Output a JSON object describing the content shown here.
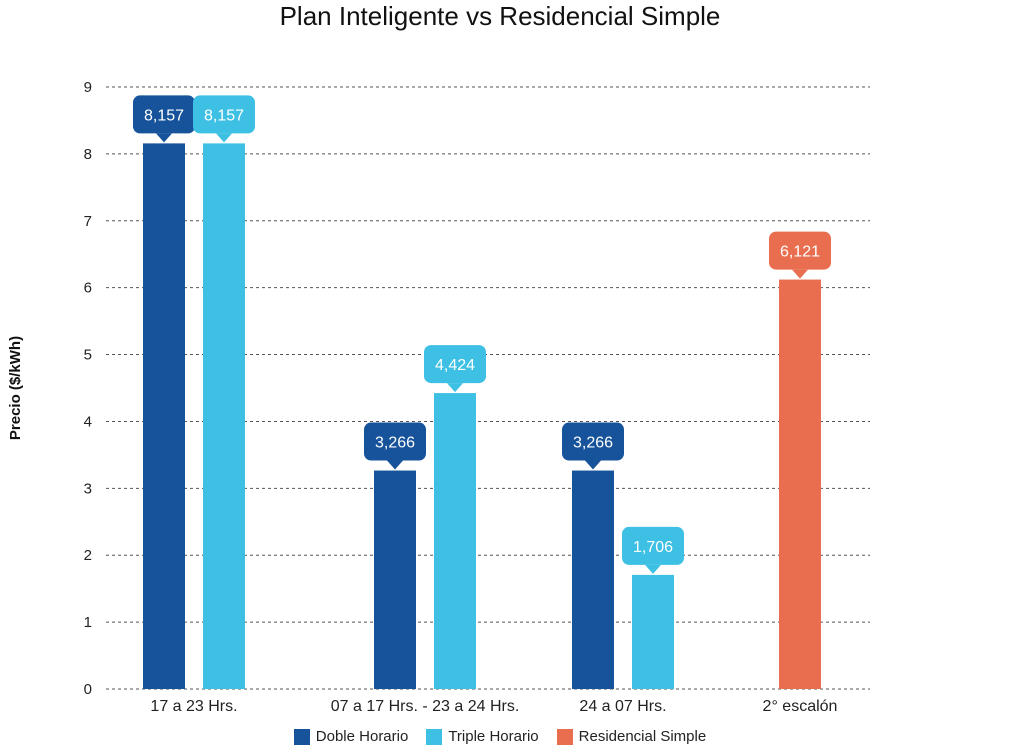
{
  "chart_data": {
    "type": "bar",
    "title": "Plan Inteligente vs Residencial Simple",
    "ylabel": "Precio ($/kWh)",
    "xlabel": "",
    "ylim": [
      0,
      9
    ],
    "yticks": [
      0,
      1,
      2,
      3,
      4,
      5,
      6,
      7,
      8,
      9
    ],
    "grid": true,
    "legend_position": "bottom",
    "categories": [
      "17 a 23 Hrs.",
      "07 a 17 Hrs. - 23 a 24 Hrs.",
      "24 a 07 Hrs.",
      "2° escalón"
    ],
    "series": [
      {
        "name": "Doble Horario",
        "color": "#16539a",
        "values": [
          8.157,
          3.266,
          3.266,
          null
        ],
        "labels": [
          "8,157",
          "3,266",
          "3,266",
          null
        ]
      },
      {
        "name": "Triple Horario",
        "color": "#3ec0e4",
        "values": [
          8.157,
          4.424,
          1.706,
          null
        ],
        "labels": [
          "8,157",
          "4,424",
          "1,706",
          null
        ]
      },
      {
        "name": "Residencial Simple",
        "color": "#e86e4f",
        "values": [
          null,
          null,
          null,
          6.121
        ],
        "labels": [
          null,
          null,
          null,
          "6,121"
        ]
      }
    ]
  }
}
